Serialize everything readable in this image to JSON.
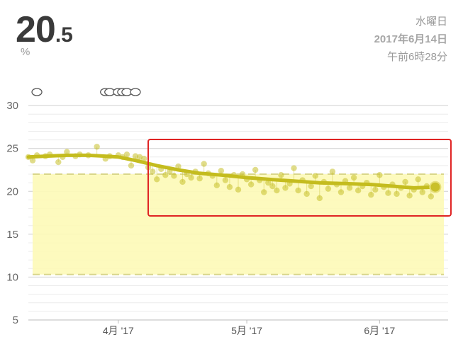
{
  "header": {
    "value_int": "20",
    "value_dec": ".5",
    "unit": "%",
    "weekday": "水曜日",
    "date": "2017年6月14日",
    "time": "午前6時28分"
  },
  "chart_data": {
    "type": "line",
    "ylim": [
      5,
      31
    ],
    "xlim": [
      "2017-03-11",
      "2017-06-17"
    ],
    "yticks": [
      5,
      10,
      15,
      20,
      25,
      30
    ],
    "xticks": [
      {
        "date": "2017-04-01",
        "label": "4月 '17"
      },
      {
        "date": "2017-05-01",
        "label": "5月 '17"
      },
      {
        "date": "2017-06-01",
        "label": "6月 '17"
      }
    ],
    "grid": true,
    "target_band": [
      10.3,
      22
    ],
    "comment_markers": [
      "2017-03-12",
      "2017-03-28",
      "2017-03-29",
      "2017-03-31",
      "2017-04-01",
      "2017-04-02",
      "2017-04-04"
    ],
    "trend": {
      "x": [
        "2017-03-11",
        "2017-03-15",
        "2017-03-20",
        "2017-03-25",
        "2017-03-29",
        "2017-04-01",
        "2017-04-05",
        "2017-04-10",
        "2017-04-15",
        "2017-04-20",
        "2017-04-25",
        "2017-05-01",
        "2017-05-06",
        "2017-05-12",
        "2017-05-18",
        "2017-05-24",
        "2017-05-30",
        "2017-06-04",
        "2017-06-09",
        "2017-06-14"
      ],
      "y": [
        24.0,
        24.1,
        24.2,
        24.2,
        24.1,
        24.0,
        23.6,
        23.0,
        22.5,
        22.1,
        21.9,
        21.6,
        21.4,
        21.2,
        21.0,
        20.9,
        20.8,
        20.6,
        20.4,
        20.5
      ]
    },
    "points": {
      "x": [
        "2017-03-11",
        "2017-03-12",
        "2017-03-13",
        "2017-03-15",
        "2017-03-16",
        "2017-03-18",
        "2017-03-19",
        "2017-03-20",
        "2017-03-22",
        "2017-03-23",
        "2017-03-25",
        "2017-03-27",
        "2017-03-29",
        "2017-03-30",
        "2017-04-01",
        "2017-04-02",
        "2017-04-03",
        "2017-04-04",
        "2017-04-05",
        "2017-04-06",
        "2017-04-07",
        "2017-04-08",
        "2017-04-09",
        "2017-04-10",
        "2017-04-11",
        "2017-04-12",
        "2017-04-13",
        "2017-04-14",
        "2017-04-15",
        "2017-04-16",
        "2017-04-17",
        "2017-04-18",
        "2017-04-19",
        "2017-04-20",
        "2017-04-21",
        "2017-04-22",
        "2017-04-23",
        "2017-04-24",
        "2017-04-25",
        "2017-04-26",
        "2017-04-27",
        "2017-04-28",
        "2017-04-29",
        "2017-04-30",
        "2017-05-01",
        "2017-05-02",
        "2017-05-03",
        "2017-05-04",
        "2017-05-05",
        "2017-05-06",
        "2017-05-07",
        "2017-05-08",
        "2017-05-09",
        "2017-05-10",
        "2017-05-11",
        "2017-05-12",
        "2017-05-13",
        "2017-05-14",
        "2017-05-15",
        "2017-05-16",
        "2017-05-17",
        "2017-05-18",
        "2017-05-19",
        "2017-05-20",
        "2017-05-21",
        "2017-05-22",
        "2017-05-23",
        "2017-05-24",
        "2017-05-25",
        "2017-05-26",
        "2017-05-27",
        "2017-05-28",
        "2017-05-29",
        "2017-05-30",
        "2017-05-31",
        "2017-06-01",
        "2017-06-02",
        "2017-06-03",
        "2017-06-04",
        "2017-06-05",
        "2017-06-06",
        "2017-06-07",
        "2017-06-08",
        "2017-06-09",
        "2017-06-10",
        "2017-06-11",
        "2017-06-12",
        "2017-06-13",
        "2017-06-14"
      ],
      "y": [
        24.0,
        23.6,
        24.2,
        24.1,
        24.3,
        23.4,
        24.0,
        24.6,
        24.1,
        24.3,
        24.2,
        25.2,
        23.8,
        24.1,
        24.2,
        24.0,
        24.3,
        23.0,
        24.1,
        24.0,
        23.8,
        22.8,
        22.3,
        21.4,
        22.6,
        21.9,
        22.3,
        21.8,
        22.9,
        21.1,
        22.0,
        21.6,
        22.3,
        21.5,
        23.2,
        22.1,
        21.8,
        20.7,
        22.4,
        21.3,
        20.5,
        21.9,
        20.2,
        22.0,
        21.4,
        20.8,
        22.5,
        21.3,
        19.9,
        21.0,
        20.6,
        20.1,
        21.9,
        20.4,
        20.9,
        22.7,
        20.1,
        21.3,
        19.7,
        20.6,
        21.8,
        19.2,
        21.1,
        20.3,
        22.3,
        20.8,
        19.9,
        21.2,
        20.4,
        21.6,
        20.1,
        20.6,
        21.0,
        19.6,
        20.2,
        21.9,
        20.5,
        19.8,
        20.8,
        19.7,
        20.4,
        21.1,
        19.5,
        20.2,
        21.4,
        19.9,
        20.6,
        19.4,
        20.5
      ]
    },
    "last_point": {
      "x": "2017-06-14",
      "y": 20.5
    }
  }
}
